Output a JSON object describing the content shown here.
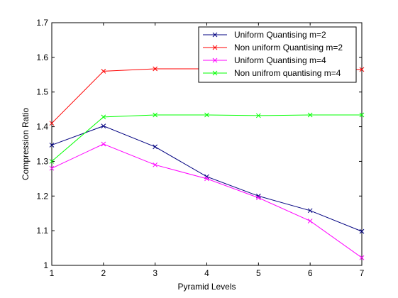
{
  "chart_data": {
    "type": "line",
    "x": [
      1,
      2,
      3,
      4,
      5,
      6,
      7
    ],
    "xlabel": "Pyramid Levels",
    "ylabel": "Compression Ratio",
    "xlim": [
      1,
      7
    ],
    "ylim": [
      1,
      1.7
    ],
    "xticks": [
      "1",
      "2",
      "3",
      "4",
      "5",
      "6",
      "7"
    ],
    "yticks": [
      "1",
      "1.1",
      "1.2",
      "1.3",
      "1.4",
      "1.5",
      "1.6",
      "1.7"
    ],
    "grid": false,
    "legend_position": "top-right",
    "series": [
      {
        "name": "Uniform Quantising m=2",
        "color": "#000080",
        "values": [
          1.347,
          1.402,
          1.342,
          1.256,
          1.2,
          1.158,
          1.098
        ]
      },
      {
        "name": "Non uniform Quantising m=2",
        "color": "#ff0000",
        "values": [
          1.41,
          1.56,
          1.567,
          1.567,
          1.567,
          1.567,
          1.565
        ]
      },
      {
        "name": "Uniform Quantising m=4",
        "color": "#ff00ff",
        "values": [
          1.28,
          1.35,
          1.29,
          1.25,
          1.195,
          1.128,
          1.022
        ]
      },
      {
        "name": "Non unifrom quantising m=4",
        "color": "#00ff00",
        "values": [
          1.3,
          1.428,
          1.434,
          1.434,
          1.432,
          1.434,
          1.434
        ]
      }
    ]
  }
}
